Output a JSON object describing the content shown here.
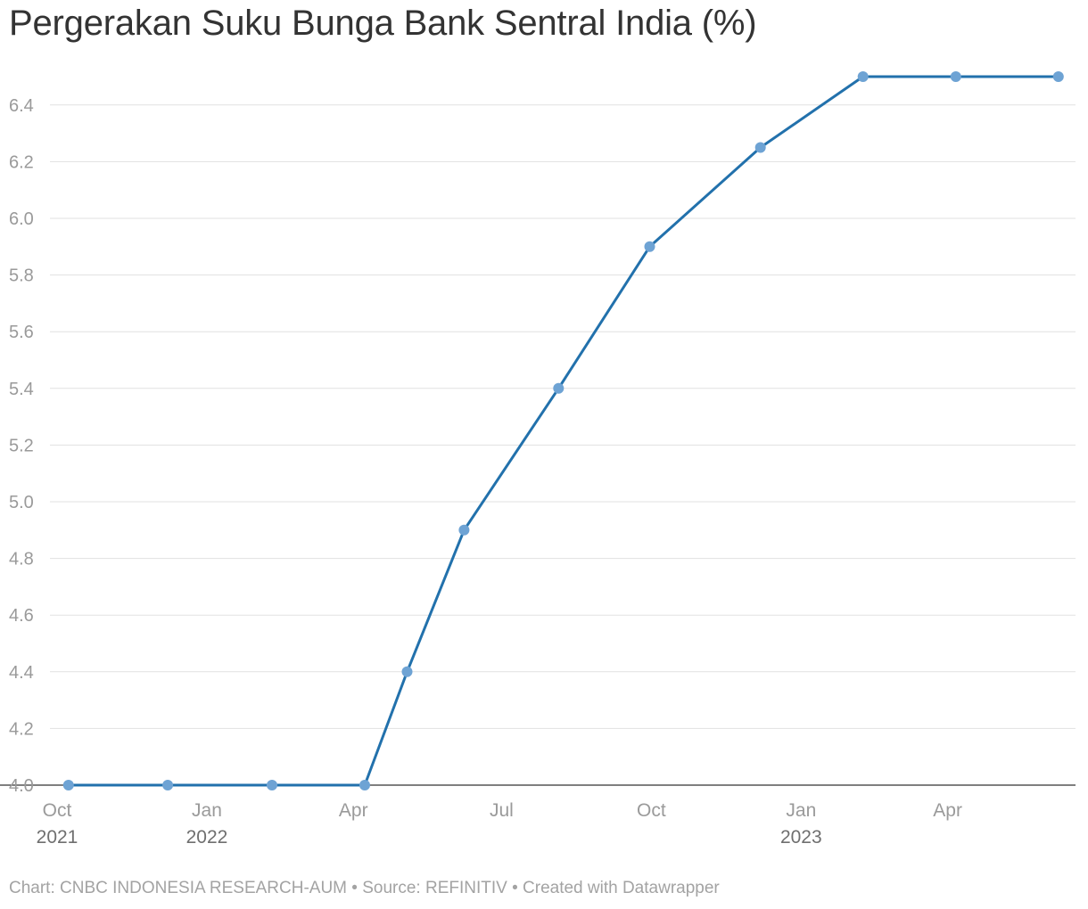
{
  "title": "Pergerakan Suku Bunga Bank Sentral India (%)",
  "footer": "Chart: CNBC INDONESIA RESEARCH-AUM • Source: REFINITIV • Created with Datawrapper",
  "colors": {
    "line": "#2271ac",
    "point": "#6ea3d4",
    "grid": "#e1e1e1",
    "tick_text": "#9a9a9a",
    "title_text": "#333333"
  },
  "chart_data": {
    "type": "line",
    "title": "Pergerakan Suku Bunga Bank Sentral India (%)",
    "xlabel": "",
    "ylabel": "",
    "ylim": [
      4.0,
      6.6
    ],
    "xlim": [
      "2021-10-01",
      "2023-06-01"
    ],
    "grid": true,
    "yticks": [
      "4.0",
      "4.2",
      "4.4",
      "4.6",
      "4.8",
      "5.0",
      "5.2",
      "5.4",
      "5.6",
      "5.8",
      "6.0",
      "6.2",
      "6.4"
    ],
    "xticks": [
      {
        "date": "2021-10-01",
        "label": "Oct",
        "year": "2021"
      },
      {
        "date": "2022-01-01",
        "label": "Jan",
        "year": "2022"
      },
      {
        "date": "2022-04-01",
        "label": "Apr",
        "year": ""
      },
      {
        "date": "2022-07-01",
        "label": "Jul",
        "year": ""
      },
      {
        "date": "2022-10-01",
        "label": "Oct",
        "year": ""
      },
      {
        "date": "2023-01-01",
        "label": "Jan",
        "year": "2023"
      },
      {
        "date": "2023-04-01",
        "label": "Apr",
        "year": ""
      }
    ],
    "series": [
      {
        "points": [
          {
            "x": "2021-10-08",
            "y": 4.0
          },
          {
            "x": "2021-12-08",
            "y": 4.0
          },
          {
            "x": "2022-02-10",
            "y": 4.0
          },
          {
            "x": "2022-04-08",
            "y": 4.0
          },
          {
            "x": "2022-05-04",
            "y": 4.4
          },
          {
            "x": "2022-06-08",
            "y": 4.9
          },
          {
            "x": "2022-08-05",
            "y": 5.4
          },
          {
            "x": "2022-09-30",
            "y": 5.9
          },
          {
            "x": "2022-12-07",
            "y": 6.25
          },
          {
            "x": "2023-02-08",
            "y": 6.5
          },
          {
            "x": "2023-04-06",
            "y": 6.5
          },
          {
            "x": "2023-06-08",
            "y": 6.5
          }
        ]
      }
    ]
  }
}
